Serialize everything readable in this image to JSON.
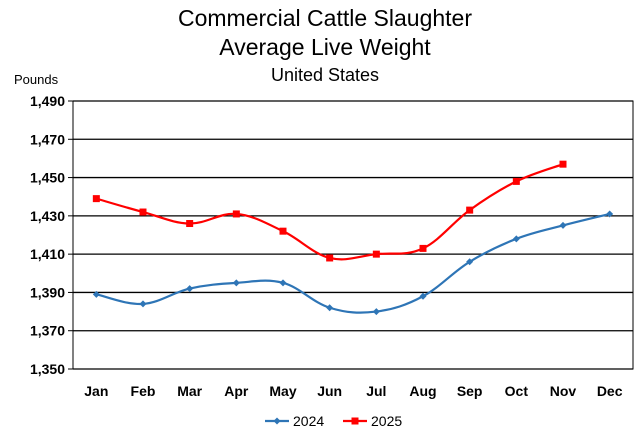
{
  "chart_data": {
    "type": "line",
    "title": "Commercial Cattle Slaughter",
    "subtitle": "Average Live Weight",
    "subtitle2": "United States",
    "ylabel": "Pounds",
    "xlabel": "",
    "categories": [
      "Jan",
      "Feb",
      "Mar",
      "Apr",
      "May",
      "Jun",
      "Jul",
      "Aug",
      "Sep",
      "Oct",
      "Nov",
      "Dec"
    ],
    "ylim": [
      1350,
      1490
    ],
    "yticks": [
      1350,
      1370,
      1390,
      1410,
      1430,
      1450,
      1470,
      1490
    ],
    "ytick_labels": [
      "1,350",
      "1,370",
      "1,390",
      "1,410",
      "1,430",
      "1,450",
      "1,470",
      "1,490"
    ],
    "grid": "horizontal",
    "legend_position": "bottom",
    "series": [
      {
        "name": "2024",
        "color": "#2E75B6",
        "marker": "diamond",
        "values": [
          1389,
          1384,
          1392,
          1395,
          1395,
          1382,
          1380,
          1388,
          1406,
          1418,
          1425,
          1431
        ]
      },
      {
        "name": "2025",
        "color": "#FF0000",
        "marker": "square",
        "values": [
          1439,
          1432,
          1426,
          1431,
          1422,
          1408,
          1410,
          1413,
          1433,
          1448,
          1457,
          null
        ]
      }
    ]
  }
}
